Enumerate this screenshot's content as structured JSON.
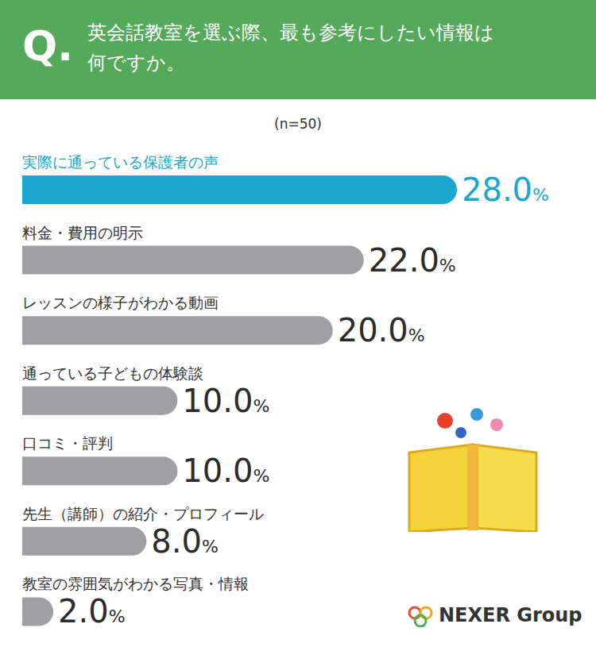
{
  "chart_data": {
    "type": "bar",
    "orientation": "horizontal",
    "title": "英会話教室を選ぶ際、最も参考にしたい情報は何ですか。",
    "subtitle": "(n=50)",
    "annotations": [
      "Q.",
      "NEXER Group"
    ],
    "categories": [
      "実際に通っている保護者の声",
      "料金・費用の明示",
      "レッスンの様子がわかる動画",
      "通っている子どもの体験談",
      "口コミ・評判",
      "先生（講師）の紹介・プロフィール",
      "教室の雰囲気がわかる写真・情報"
    ],
    "values": [
      28,
      22,
      20,
      10,
      10,
      8,
      2
    ],
    "value_labels": [
      "28.0%",
      "22.0%",
      "20.0%",
      "10.0%",
      "10.0%",
      "8.0%",
      "2.0%"
    ],
    "colors": [
      "#1ba6cf",
      "#a0a0a3",
      "#a0a0a3",
      "#a0a0a3",
      "#a0a0a3",
      "#a0a0a3",
      "#a0a0a3"
    ],
    "xlim": [
      0,
      28
    ],
    "xticks": [
      0,
      28
    ],
    "grid": false,
    "data_labels": true,
    "tick_labels": false
  }
}
